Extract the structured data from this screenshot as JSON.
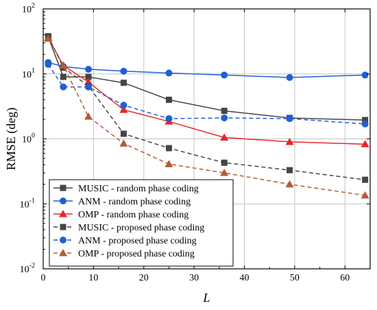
{
  "chart_data": {
    "type": "line",
    "xlabel": "L",
    "ylabel": "RMSE (deg)",
    "x_scale": "linear",
    "y_scale": "log",
    "xlim": [
      0,
      65
    ],
    "ylim": [
      0.01,
      100
    ],
    "x_ticks": [
      0,
      10,
      20,
      30,
      40,
      50,
      60
    ],
    "x_tick_labels": [
      "0",
      "10",
      "20",
      "30",
      "40",
      "50",
      "60"
    ],
    "y_ticks": [
      0.01,
      0.1,
      1,
      10,
      100
    ],
    "y_tick_labels": [
      {
        "base": "10",
        "exp": "-2"
      },
      {
        "base": "10",
        "exp": "-1"
      },
      {
        "base": "10",
        "exp": "0"
      },
      {
        "base": "10",
        "exp": "1"
      },
      {
        "base": "10",
        "exp": "2"
      }
    ],
    "grid": true,
    "legend_position": "bottom-left",
    "series": [
      {
        "name": "MUSIC - random phase coding",
        "color": "#454545",
        "marker": "square",
        "dash": "solid",
        "x": [
          1,
          4,
          9,
          16,
          25,
          36,
          49,
          64
        ],
        "y": [
          37,
          9.0,
          9.0,
          7.3,
          4.0,
          2.7,
          2.1,
          1.95
        ]
      },
      {
        "name": "ANM - random phase coding",
        "color": "#1f5fd6",
        "marker": "circle",
        "dash": "solid",
        "x": [
          1,
          4,
          9,
          16,
          25,
          36,
          49,
          64
        ],
        "y": [
          15,
          13,
          11.8,
          11.0,
          10.3,
          9.6,
          8.8,
          9.6
        ]
      },
      {
        "name": "OMP - random phase coding",
        "color": "#e8262a",
        "marker": "triangle",
        "dash": "solid",
        "x": [
          1,
          4,
          9,
          16,
          25,
          36,
          49,
          64
        ],
        "y": [
          36,
          13.5,
          7.5,
          2.8,
          1.85,
          1.05,
          0.9,
          0.83
        ]
      },
      {
        "name": "MUSIC - proposed phase coding",
        "color": "#454545",
        "marker": "square",
        "dash": "dashed",
        "x": [
          1,
          4,
          9,
          16,
          25,
          36,
          49,
          64
        ],
        "y": [
          38,
          12.5,
          6.5,
          1.2,
          0.72,
          0.43,
          0.33,
          0.235
        ]
      },
      {
        "name": "ANM - proposed phase coding",
        "color": "#1f5fd6",
        "marker": "circle",
        "dash": "dashed",
        "x": [
          1,
          4,
          9,
          16,
          25,
          36,
          49,
          64
        ],
        "y": [
          14,
          6.3,
          6.3,
          3.3,
          2.05,
          2.1,
          2.05,
          1.7
        ]
      },
      {
        "name": "OMP - proposed phase coding",
        "color": "#b35a38",
        "marker": "triangle",
        "dash": "dashed",
        "x": [
          1,
          4,
          9,
          16,
          25,
          36,
          49,
          64
        ],
        "y": [
          35,
          13.5,
          2.2,
          0.85,
          0.41,
          0.3,
          0.2,
          0.135
        ]
      }
    ]
  }
}
